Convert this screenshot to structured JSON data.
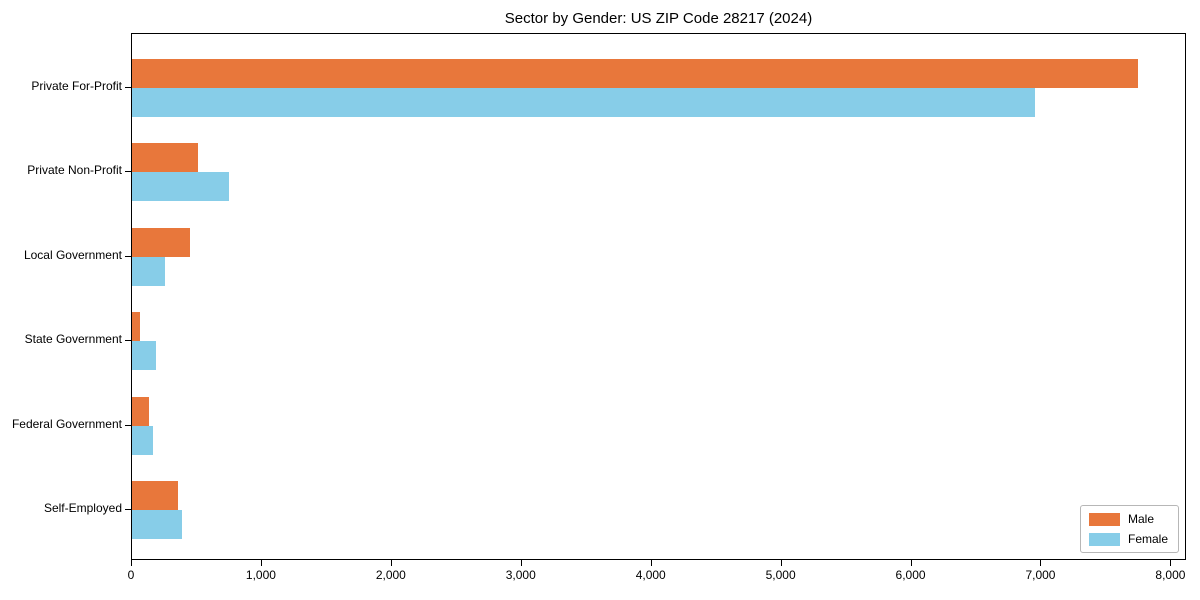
{
  "title": "Sector by Gender: US ZIP Code 28217 (2024)",
  "legend": {
    "position": "lower right",
    "items": [
      {
        "label": "Male",
        "color": "#e8773b"
      },
      {
        "label": "Female",
        "color": "#87cde8"
      }
    ]
  },
  "chart_data": {
    "type": "bar",
    "orientation": "horizontal",
    "title": "Sector by Gender: US ZIP Code 28217 (2024)",
    "categories": [
      "Private For-Profit",
      "Private Non-Profit",
      "Local Government",
      "State Government",
      "Federal Government",
      "Self-Employed"
    ],
    "series": [
      {
        "name": "Male",
        "color": "#e8773b",
        "values": [
          7740,
          510,
          450,
          60,
          130,
          355
        ]
      },
      {
        "name": "Female",
        "color": "#87cde8",
        "values": [
          6950,
          745,
          255,
          185,
          160,
          385
        ]
      }
    ],
    "xlabel": "",
    "ylabel": "",
    "xlim": [
      0,
      8120
    ],
    "xticks": [
      0,
      1000,
      2000,
      3000,
      4000,
      5000,
      6000,
      7000,
      8000
    ],
    "xtick_labels": [
      "0",
      "1,000",
      "2,000",
      "3,000",
      "4,000",
      "5,000",
      "6,000",
      "7,000",
      "8,000"
    ],
    "grid": false,
    "legend_position": "lower right"
  }
}
